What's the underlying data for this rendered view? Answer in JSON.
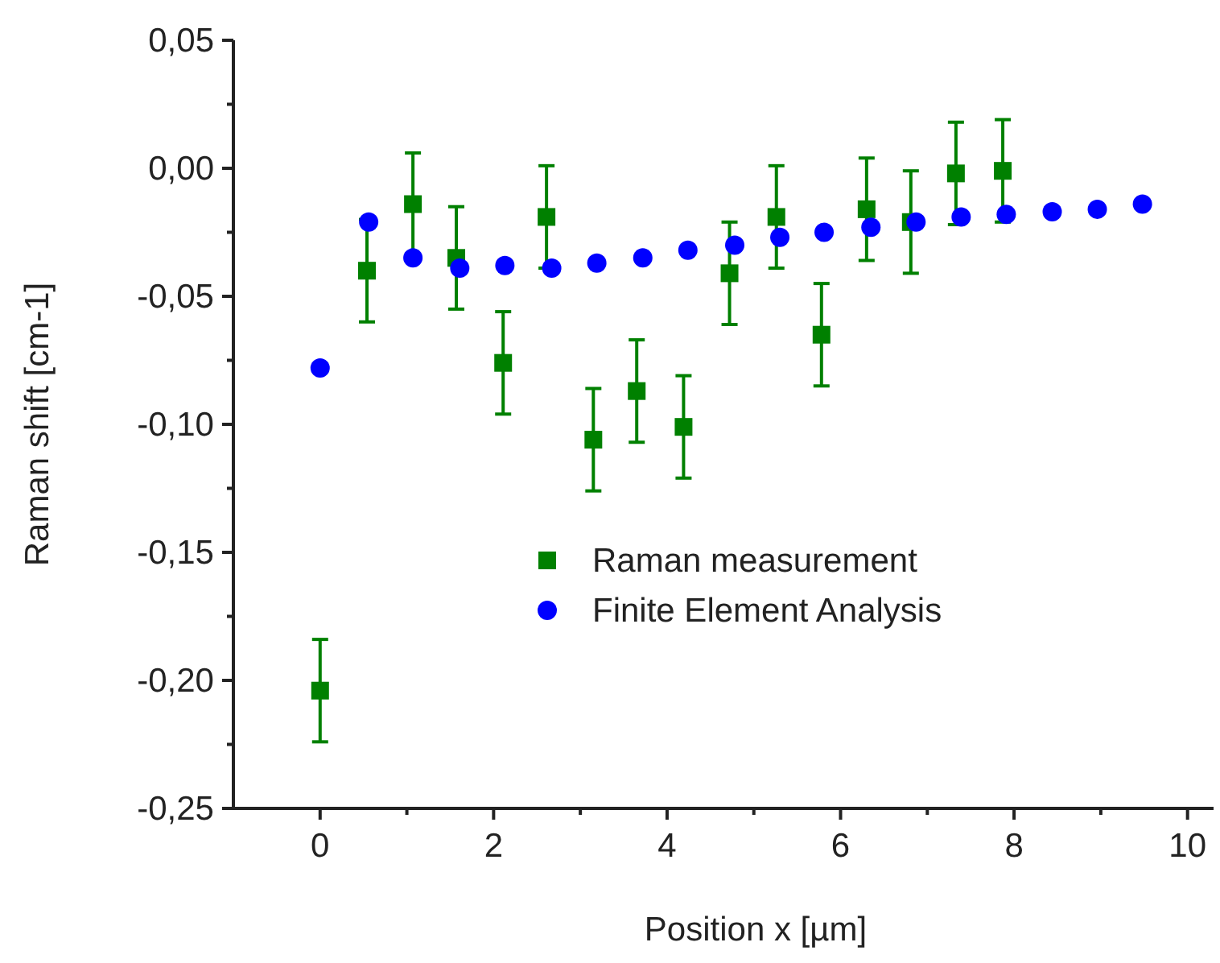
{
  "chart_data": {
    "type": "scatter",
    "xlabel": "Position x [µm]",
    "ylabel": "Raman shift [cm-1]",
    "xlim": [
      -1,
      10.3
    ],
    "xticks": [
      0,
      2,
      4,
      6,
      8,
      10
    ],
    "ylim": [
      -0.25,
      0.05
    ],
    "yticks": [
      {
        "value": -0.25,
        "label": "-0,25"
      },
      {
        "value": -0.2,
        "label": "-0,20"
      },
      {
        "value": -0.15,
        "label": "-0,15"
      },
      {
        "value": -0.1,
        "label": "-0,10"
      },
      {
        "value": -0.05,
        "label": "-0,05"
      },
      {
        "value": 0,
        "label": "0,00"
      },
      {
        "value": 0.05,
        "label": "0,05"
      }
    ],
    "legend": "right",
    "grid": false,
    "series": [
      {
        "name": "Raman measurement",
        "color": "#008000",
        "marker": "square",
        "x": [
          0,
          0.54,
          1.07,
          1.57,
          2.11,
          2.61,
          3.15,
          3.65,
          4.19,
          4.72,
          5.26,
          5.78,
          6.3,
          6.81,
          7.33,
          7.87
        ],
        "values": [
          -0.204,
          -0.04,
          -0.014,
          -0.035,
          -0.076,
          -0.019,
          -0.106,
          -0.087,
          -0.101,
          -0.041,
          -0.019,
          -0.065,
          -0.016,
          -0.021,
          -0.002,
          -0.001
        ],
        "errors": [
          0.02,
          0.02,
          0.02,
          0.02,
          0.02,
          0.02,
          0.02,
          0.02,
          0.02,
          0.02,
          0.02,
          0.02,
          0.02,
          0.02,
          0.02,
          0.02
        ]
      },
      {
        "name": "Finite Element Analysis",
        "color": "#0000ff",
        "marker": "circle",
        "x": [
          0,
          0.56,
          1.07,
          1.61,
          2.13,
          2.67,
          3.19,
          3.72,
          4.24,
          4.78,
          5.3,
          5.81,
          6.35,
          6.87,
          7.39,
          7.91,
          8.44,
          8.96,
          9.48
        ],
        "values": [
          -0.078,
          -0.021,
          -0.035,
          -0.039,
          -0.038,
          -0.039,
          -0.037,
          -0.035,
          -0.032,
          -0.03,
          -0.027,
          -0.025,
          -0.023,
          -0.021,
          -0.019,
          -0.018,
          -0.017,
          -0.016,
          -0.014
        ]
      }
    ]
  }
}
